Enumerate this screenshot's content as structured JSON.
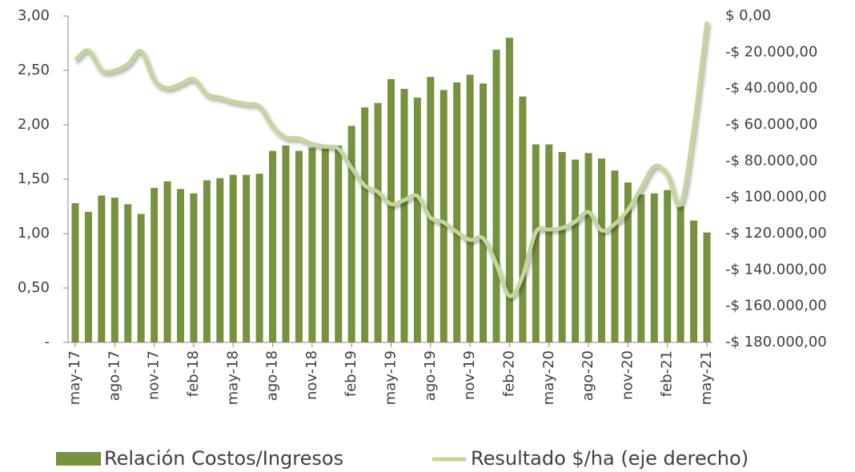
{
  "chart_data": {
    "type": "bar",
    "categories": [
      "may-17",
      null,
      null,
      "ago-17",
      null,
      null,
      "nov-17",
      null,
      null,
      "feb-18",
      null,
      null,
      "may-18",
      null,
      null,
      "ago-18",
      null,
      null,
      "nov-18",
      null,
      null,
      "feb-19",
      null,
      null,
      "may-19",
      null,
      null,
      "ago-19",
      null,
      null,
      "nov-19",
      null,
      null,
      "feb-20",
      null,
      null,
      "may-20",
      null,
      null,
      "ago-20",
      null,
      null,
      "nov-20",
      null,
      null,
      "feb-21",
      null,
      null,
      "may-21"
    ],
    "series": [
      {
        "name": "Relación Costos/Ingresos",
        "type": "bar",
        "color": "#76923c",
        "values": [
          1.28,
          1.2,
          1.35,
          1.33,
          1.27,
          1.18,
          1.42,
          1.48,
          1.41,
          1.37,
          1.49,
          1.51,
          1.54,
          1.54,
          1.55,
          1.76,
          1.81,
          1.76,
          1.79,
          1.78,
          1.81,
          1.99,
          2.16,
          2.2,
          2.42,
          2.33,
          2.25,
          2.44,
          2.32,
          2.39,
          2.46,
          2.38,
          2.69,
          2.8,
          2.26,
          1.82,
          1.82,
          1.75,
          1.68,
          1.74,
          1.69,
          1.58,
          1.47,
          1.36,
          1.37,
          1.4,
          1.25,
          1.12,
          1.01
        ]
      },
      {
        "name": "Resultado $/ha (eje derecho)",
        "type": "line",
        "axis": "y2",
        "color": "#c3d69b",
        "values": [
          -24300,
          -19000,
          -30000,
          -30000,
          -26500,
          -19400,
          -35300,
          -39700,
          -37500,
          -34900,
          -43200,
          -45000,
          -47200,
          -48500,
          -49900,
          -60900,
          -67000,
          -67500,
          -70600,
          -72000,
          -73200,
          -83800,
          -93500,
          -97000,
          -103700,
          -101500,
          -99300,
          -111200,
          -113800,
          -119100,
          -123500,
          -122600,
          -136800,
          -154400,
          -143400,
          -119100,
          -117800,
          -116900,
          -113400,
          -108100,
          -118200,
          -114700,
          -106800,
          -94900,
          -82900,
          -87400,
          -103700,
          -61800,
          -3100
        ]
      }
    ],
    "ylim": [
      0,
      3
    ],
    "yticks": [
      {
        "value": 0,
        "label": "-"
      },
      {
        "value": 0.5,
        "label": "0,50"
      },
      {
        "value": 1,
        "label": "1,00"
      },
      {
        "value": 1.5,
        "label": "1,50"
      },
      {
        "value": 2,
        "label": "2,00"
      },
      {
        "value": 2.5,
        "label": "2,50"
      },
      {
        "value": 3,
        "label": "3,00"
      }
    ],
    "y2lim": [
      -180000,
      0
    ],
    "y2ticks": [
      {
        "value": 0,
        "label": "$ 0,00"
      },
      {
        "value": -20000,
        "label": "-$ 20.000,00"
      },
      {
        "value": -40000,
        "label": "-$ 40.000,00"
      },
      {
        "value": -60000,
        "label": "-$ 60.000,00"
      },
      {
        "value": -80000,
        "label": "-$ 80.000,00"
      },
      {
        "value": -100000,
        "label": "-$ 100.000,00"
      },
      {
        "value": -120000,
        "label": "-$ 120.000,00"
      },
      {
        "value": -140000,
        "label": "-$ 140.000,00"
      },
      {
        "value": -160000,
        "label": "-$ 160.000,00"
      },
      {
        "value": -180000,
        "label": "-$ 180.000,00"
      }
    ],
    "legend": "bottom",
    "grid": false
  }
}
